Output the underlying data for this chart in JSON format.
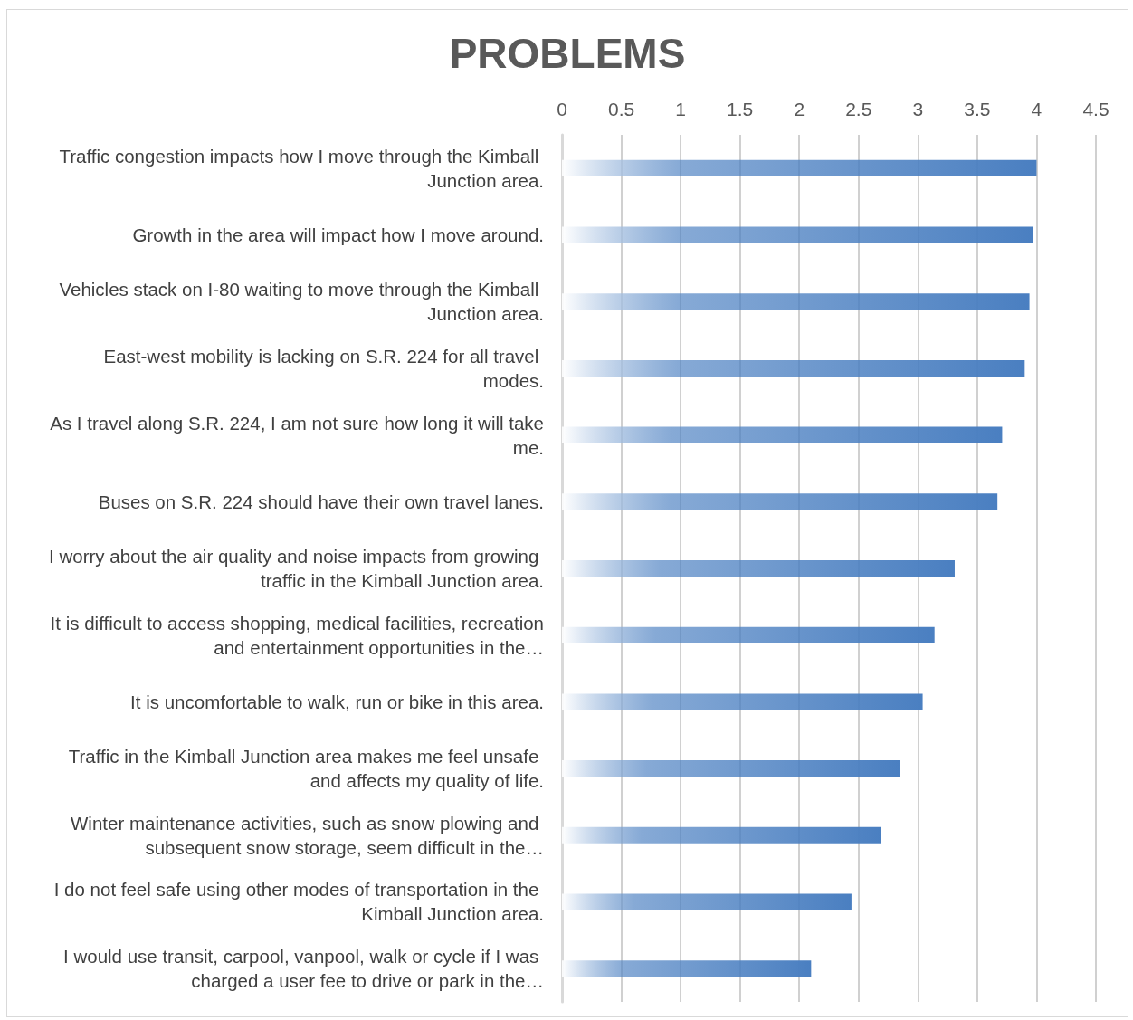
{
  "chart_data": {
    "type": "bar",
    "orientation": "horizontal",
    "title": "PROBLEMS",
    "categories": [
      "Traffic congestion impacts how I move through the Kimball Junction area.",
      "Growth in the area will impact how I move around.",
      "Vehicles stack on I-80 waiting to move through the Kimball Junction area.",
      "East-west mobility is lacking on S.R. 224 for all travel modes.",
      "As I travel along S.R. 224, I am not sure how long it will take me.",
      "Buses on S.R. 224 should have their own travel lanes.",
      "I worry about the air quality and noise impacts from growing traffic in the Kimball Junction area.",
      "It is difficult to access shopping, medical facilities, recreation and entertainment opportunities in the…",
      "It is uncomfortable to walk, run or bike in this area.",
      "Traffic in the Kimball Junction area makes me feel unsafe and affects my quality of life.",
      "Winter maintenance activities, such as snow plowing and subsequent snow storage, seem difficult in the…",
      "I do not feel safe using other modes of transportation in the Kimball Junction area.",
      "I would use transit, carpool, vanpool, walk or cycle if I was charged a user fee to drive or park in the…"
    ],
    "values": [
      4.0,
      3.97,
      3.94,
      3.9,
      3.71,
      3.67,
      3.31,
      3.14,
      3.04,
      2.85,
      2.69,
      2.44,
      2.1
    ],
    "color": "#4a7fc1",
    "xlim": [
      0,
      4.5
    ],
    "xticks": [
      0,
      0.5,
      1,
      1.5,
      2,
      2.5,
      3,
      3.5,
      4,
      4.5
    ],
    "grid": "x"
  }
}
